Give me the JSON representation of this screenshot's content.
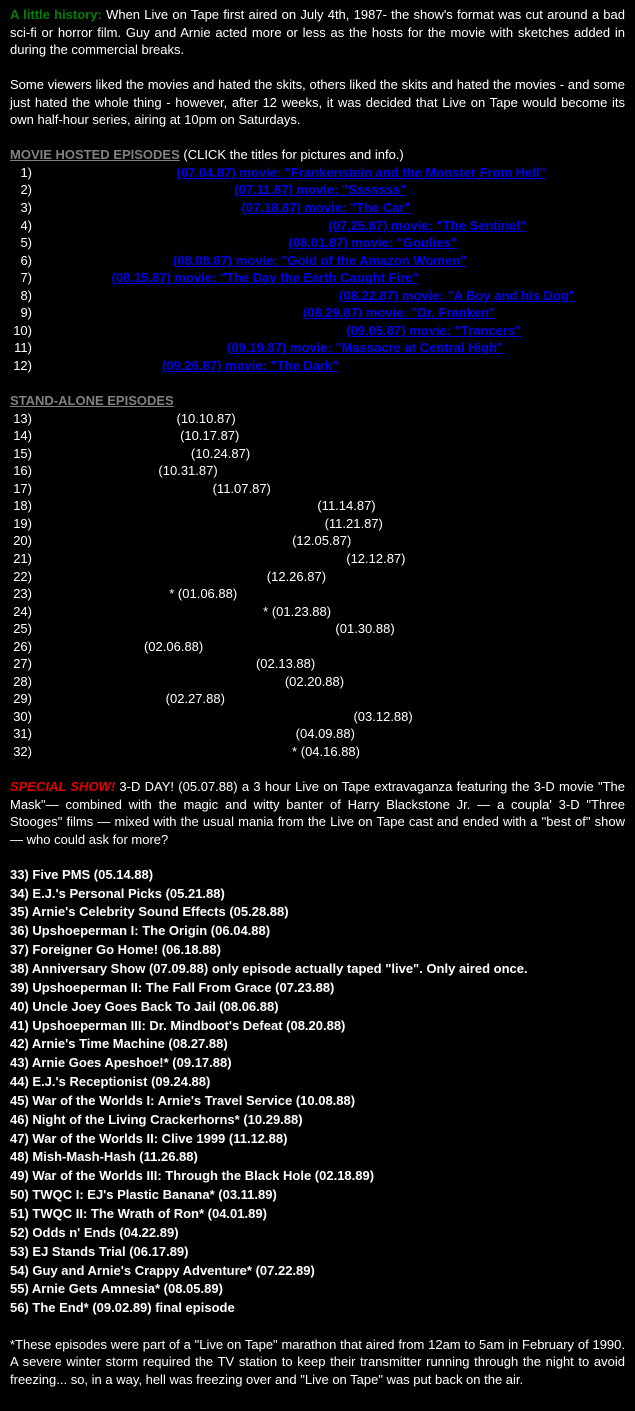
{
  "history": {
    "lead": "A little history:",
    "para1_rest": "  When Live on Tape first aired on July 4th, 1987- the show's format was cut around a bad sci-fi or horror film.  Guy and Arnie acted more or less as the hosts for the movie with sketches added in during the commercial breaks.",
    "para2": "Some viewers liked the movies and hated the skits, others liked the skits and hated the movies - and some just hated the whole thing - however, after 12 weeks, it was decided that Live on Tape would become its own half-hour series, airing at 10pm on Saturdays."
  },
  "movieSection": {
    "heading": "MOVIE HOSTED EPISODES",
    "headingNote": "  (CLICK the titles for pictures and info.)",
    "rows": [
      {
        "n": "1",
        "pre": "                                        ",
        "title": "(07.04.87) movie: \"Frankenstein and the Monster From Hell\""
      },
      {
        "n": "2",
        "pre": "                                                        ",
        "title": "(07.11.87) movie: \"Sssssss\""
      },
      {
        "n": "3",
        "pre": "                                                          ",
        "title": "(07.18.87) movie: \"The Car\""
      },
      {
        "n": "4",
        "pre": "                                                                                  ",
        "title": "(07.25.87) movie: \"The Sentinel\""
      },
      {
        "n": "5",
        "pre": "                                                                       ",
        "title": "(08.01.87) movie: \"Goulies\""
      },
      {
        "n": "6",
        "pre": "                                       ",
        "title": "(08.08.87) movie: \"Gold of the Amazon Women\""
      },
      {
        "n": "7",
        "pre": "                      ",
        "title": "(08.15.87) movie: \"The Day the Earth Caught Fire\""
      },
      {
        "n": "8",
        "pre": "                                                                                     ",
        "title": "(08.22.87) movie: \"A Boy and his Dog\""
      },
      {
        "n": "9",
        "pre": "                                                                           ",
        "title": "(08.29.87) movie: \"Dr. Franken\""
      },
      {
        "n": "10",
        "pre": "                                                                                       ",
        "title": "(09.05.87) movie: \"Trancers\""
      },
      {
        "n": "11",
        "pre": "                                                      ",
        "title": "(09.19.87) movie: \"Massacre at Central High\""
      },
      {
        "n": "12",
        "pre": "                                    ",
        "title": "(09.26.87) movie: \"The Dark\""
      }
    ]
  },
  "standAlone": {
    "heading": "STAND-ALONE EPISODES",
    "rows": [
      {
        "n": "13",
        "pre": "                                        ",
        "suf": "(10.10.87)"
      },
      {
        "n": "14",
        "pre": "                                         ",
        "suf": "(10.17.87)"
      },
      {
        "n": "15",
        "pre": "                                            ",
        "suf": "(10.24.87)"
      },
      {
        "n": "16",
        "pre": "                                   ",
        "suf": "(10.31.87)"
      },
      {
        "n": "17",
        "pre": "                                                  ",
        "suf": "(11.07.87)"
      },
      {
        "n": "18",
        "pre": "                                                                               ",
        "suf": "(11.14.87)"
      },
      {
        "n": "19",
        "pre": "                                                                                 ",
        "suf": "(11.21.87)"
      },
      {
        "n": "20",
        "pre": "                                                                        ",
        "suf": "(12.05.87)"
      },
      {
        "n": "21",
        "pre": "                                                                                       ",
        "suf": "(12.12.87)"
      },
      {
        "n": "22",
        "pre": "                                                                 ",
        "suf": "(12.26.87)"
      },
      {
        "n": "23",
        "pre": "                                      * ",
        "suf": "(01.06.88)"
      },
      {
        "n": "24",
        "pre": "                                                                * ",
        "suf": "(01.23.88)"
      },
      {
        "n": "25",
        "pre": "                                                                                    ",
        "suf": "(01.30.88)"
      },
      {
        "n": "26",
        "pre": "                               ",
        "suf": "(02.06.88)"
      },
      {
        "n": "27",
        "pre": "                                                              ",
        "suf": "(02.13.88)"
      },
      {
        "n": "28",
        "pre": "                                                                      ",
        "suf": "(02.20.88)"
      },
      {
        "n": "29",
        "pre": "                                     ",
        "suf": "(02.27.88)"
      },
      {
        "n": "30",
        "pre": "                                                                                         ",
        "suf": "(03.12.88)"
      },
      {
        "n": "31",
        "pre": "                                                                         ",
        "suf": "(04.09.88)"
      },
      {
        "n": "32",
        "pre": "                                                                        * ",
        "suf": "(04.16.88)"
      }
    ]
  },
  "special": {
    "lead": "SPECIAL SHOW!",
    "rest": " 3-D DAY! (05.07.88) a 3 hour Live on Tape extravaganza featuring the 3-D movie \"The Mask\"— combined with the magic and witty banter of Harry Blackstone Jr. — a coupla' 3-D \"Three Stooges\" films — mixed with the usual mania from the Live on Tape cast and ended with a \"best of\" show— who could ask for more?"
  },
  "season3": [
    "33) Five PMS (05.14.88)",
    "34) E.J.'s Personal Picks (05.21.88)",
    "35) Arnie's Celebrity Sound Effects (05.28.88)",
    "36) Upshoeperman I: The Origin (06.04.88)",
    "37) Foreigner Go Home! (06.18.88)",
    "38) Anniversary Show (07.09.88) only episode actually taped \"live\".  Only aired once.",
    "39) Upshoeperman II: The Fall From Grace (07.23.88)",
    "40) Uncle Joey Goes Back To Jail (08.06.88)",
    "41) Upshoeperman III: Dr. Mindboot's Defeat (08.20.88)",
    "42) Arnie's Time Machine (08.27.88)",
    "43) Arnie Goes Apeshoe!* (09.17.88)",
    "44) E.J.'s Receptionist (09.24.88)",
    "45) War of the Worlds I: Arnie's Travel Service (10.08.88)",
    "46) Night of the Living Crackerhorns* (10.29.88)",
    "47) War of the Worlds II: Clive 1999 (11.12.88)",
    "48) Mish-Mash-Hash (11.26.88)",
    "49) War of the Worlds III: Through the Black Hole (02.18.89)",
    "50) TWQC I: EJ's Plastic Banana* (03.11.89)",
    "51) TWQC II: The Wrath of Ron* (04.01.89)",
    "52) Odds n' Ends (04.22.89)",
    "53) EJ Stands Trial (06.17.89)",
    "54) Guy and Arnie's Crappy Adventure* (07.22.89)",
    "55) Arnie Gets Amnesia* (08.05.89)",
    "56) The End* (09.02.89) final episode"
  ],
  "footnote": "*These episodes were part of a \"Live on Tape\" marathon that aired from 12am to 5am in February of 1990.  A severe winter storm required the TV station to keep their transmitter running through the night to avoid freezing... so, in a way, hell was freezing over and \"Live on Tape\" was put back on the air."
}
